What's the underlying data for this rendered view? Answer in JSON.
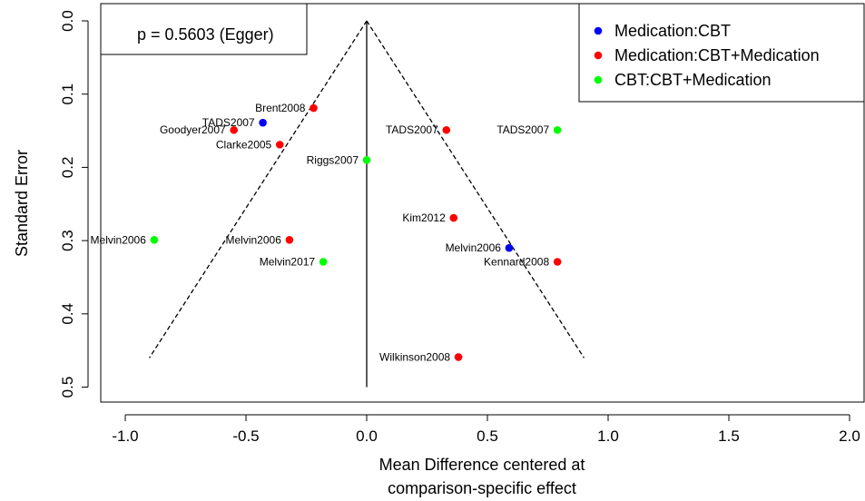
{
  "chart_data": {
    "type": "scatter",
    "title": "",
    "xlabel": [
      "Mean Difference centered at",
      "comparison-specific effect"
    ],
    "ylabel": "Standard Error",
    "xlim": [
      -1.1,
      2.1
    ],
    "ylim": [
      0.0,
      0.5
    ],
    "y_reversed": true,
    "x_ticks": [
      -1.0,
      -0.5,
      0.0,
      0.5,
      1.0,
      1.5,
      2.0
    ],
    "x_tick_labels": [
      "-1.0",
      "-0.5",
      "0.0",
      "0.5",
      "1.0",
      "1.5",
      "2.0"
    ],
    "y_ticks": [
      0.0,
      0.1,
      0.2,
      0.3,
      0.4,
      0.5
    ],
    "y_tick_labels": [
      "0.0",
      "0.1",
      "0.2",
      "0.3",
      "0.4",
      "0.5"
    ],
    "annotation": "p = 0.5603 (Egger)",
    "funnel": {
      "apex": [
        0.0,
        0.0
      ],
      "left_base": [
        -0.9,
        0.46
      ],
      "right_base": [
        0.9,
        0.46
      ],
      "center_line": [
        [
          0.0,
          0.0
        ],
        [
          0.0,
          0.5
        ]
      ]
    },
    "legend_position": "top-right",
    "series": [
      {
        "name": "Medication:CBT",
        "color": "#0000ff",
        "points": [
          {
            "x": -0.43,
            "y": 0.139,
            "label": "TADS2007"
          },
          {
            "x": 0.59,
            "y": 0.31,
            "label": "Melvin2006"
          }
        ]
      },
      {
        "name": "Medication:CBT+Medication",
        "color": "#ff0000",
        "points": [
          {
            "x": -0.22,
            "y": 0.119,
            "label": "Brent2008"
          },
          {
            "x": -0.55,
            "y": 0.149,
            "label": "Goodyer2007"
          },
          {
            "x": -0.36,
            "y": 0.169,
            "label": "Clarke2005"
          },
          {
            "x": 0.33,
            "y": 0.149,
            "label": "TADS2007"
          },
          {
            "x": 0.36,
            "y": 0.269,
            "label": "Kim2012"
          },
          {
            "x": -0.32,
            "y": 0.299,
            "label": "Melvin2006"
          },
          {
            "x": 0.79,
            "y": 0.329,
            "label": "Kennard2008"
          },
          {
            "x": 0.38,
            "y": 0.459,
            "label": "Wilkinson2008"
          }
        ]
      },
      {
        "name": "CBT:CBT+Medication",
        "color": "#00ff00",
        "points": [
          {
            "x": 0.79,
            "y": 0.149,
            "label": "TADS2007"
          },
          {
            "x": 0.0,
            "y": 0.19,
            "label": "Riggs2007"
          },
          {
            "x": -0.88,
            "y": 0.299,
            "label": "Melvin2006"
          },
          {
            "x": -0.18,
            "y": 0.329,
            "label": "Melvin2017"
          }
        ]
      }
    ]
  }
}
